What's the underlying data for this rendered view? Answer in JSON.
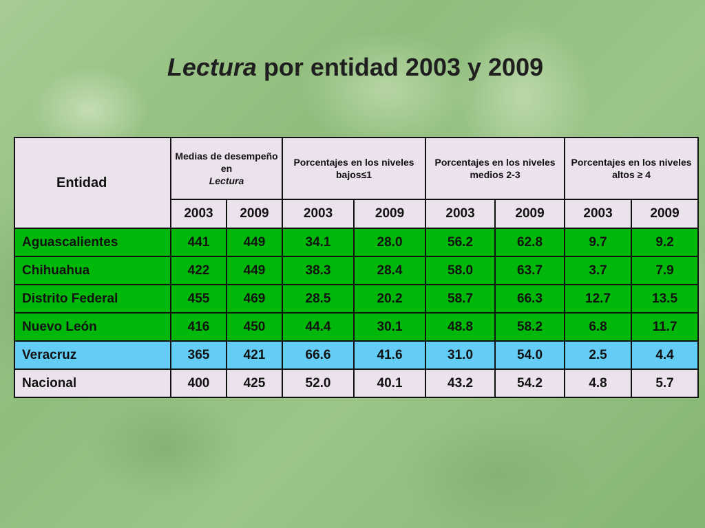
{
  "title": {
    "italic_part": "Lectura",
    "rest": " por entidad 2003 y 2009"
  },
  "table": {
    "entidad_header": "Entidad",
    "group_headers": {
      "medias": {
        "line1": "Medias de desempeño en ",
        "italic": "Lectura"
      },
      "bajos": "Porcentajes en los niveles bajos≤1",
      "medios": "Porcentajes en los niveles medios 2-3",
      "altos": "Porcentajes en los niveles altos ≥ 4"
    },
    "years": [
      "2003",
      "2009",
      "2003",
      "2009",
      "2003",
      "2009",
      "2003",
      "2009"
    ],
    "rows": [
      {
        "entity": "Aguascalientes",
        "values": [
          "441",
          "449",
          "34.1",
          "28.0",
          "56.2",
          "62.8",
          "9.7",
          "9.2"
        ],
        "color": "#00b80a"
      },
      {
        "entity": "Chihuahua",
        "values": [
          "422",
          "449",
          "38.3",
          "28.4",
          "58.0",
          "63.7",
          "3.7",
          "7.9"
        ],
        "color": "#00b80a"
      },
      {
        "entity": "Distrito Federal",
        "values": [
          "455",
          "469",
          "28.5",
          "20.2",
          "58.7",
          "66.3",
          "12.7",
          "13.5"
        ],
        "color": "#00b80a"
      },
      {
        "entity": "Nuevo León",
        "values": [
          "416",
          "450",
          "44.4",
          "30.1",
          "48.8",
          "58.2",
          "6.8",
          "11.7"
        ],
        "color": "#00b80a"
      },
      {
        "entity": "Veracruz",
        "values": [
          "365",
          "421",
          "66.6",
          "41.6",
          "31.0",
          "54.0",
          "2.5",
          "4.4"
        ],
        "color": "#63cdf5"
      },
      {
        "entity": "Nacional",
        "values": [
          "400",
          "425",
          "52.0",
          "40.1",
          "43.2",
          "54.2",
          "4.8",
          "5.7"
        ],
        "color": "#ece2ee"
      }
    ]
  }
}
